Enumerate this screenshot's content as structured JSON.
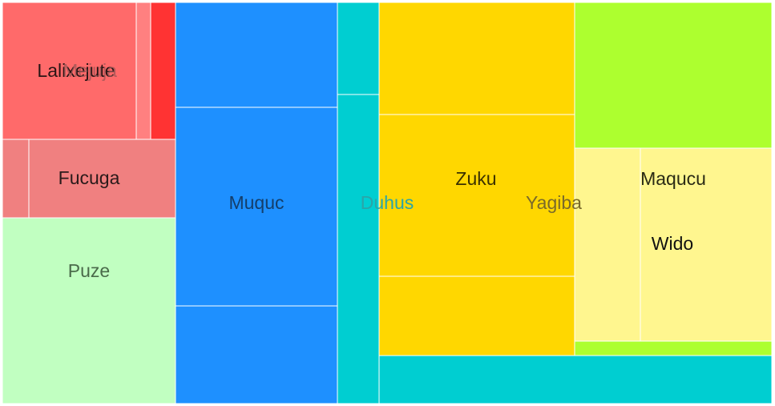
{
  "chart_data": {
    "type": "treemap",
    "nodes": [
      {
        "id": "Lalixejute",
        "color": "#ff6a6a",
        "label_color": "#2a1515",
        "label_opacity": 1
      },
      {
        "id": "Mejuja",
        "color": "#ff8080",
        "label_color": "#9a5555",
        "label_opacity": 0.75
      },
      {
        "id": "Mejuja-2",
        "name": "",
        "color": "#ff3333"
      },
      {
        "id": "Fucuga-a",
        "name": "",
        "color": "#f08080"
      },
      {
        "id": "Fucuga",
        "color": "#f08080",
        "label_color": "#2a1a1a",
        "label_opacity": 1
      },
      {
        "id": "Puze",
        "color": "#c1ffc1",
        "label_color": "#4a6a4a",
        "label_opacity": 1
      },
      {
        "id": "Muquc-top",
        "name": "",
        "color": "#1e90ff"
      },
      {
        "id": "Muquc",
        "color": "#1e90ff",
        "label_color": "#143e6a",
        "label_opacity": 1
      },
      {
        "id": "Muquc-bottom",
        "name": "",
        "color": "#1e90ff"
      },
      {
        "id": "Duhus-top",
        "name": "",
        "color": "#00ced1"
      },
      {
        "id": "Duhus",
        "color": "#00ced1",
        "label_color": "#2aa5a8",
        "label_opacity": 1
      },
      {
        "id": "Zuku-top",
        "name": "",
        "color": "#ffd700"
      },
      {
        "id": "Zuku",
        "color": "#ffd700",
        "label_color": "#3a3000",
        "label_opacity": 1
      },
      {
        "id": "Zuku-bottom",
        "name": "",
        "color": "#ffd700"
      },
      {
        "id": "Yagiba",
        "color": "#adff2f",
        "label_color": "#7a6a2a",
        "label_opacity": 1
      },
      {
        "id": "Maqucu",
        "color": "#fff68f",
        "label_color": "#2a2a15",
        "label_opacity": 1
      },
      {
        "id": "Wido",
        "color": "#fff68f",
        "label_color": "#111111",
        "label_opacity": 1
      },
      {
        "id": "Yagiba-strip",
        "name": "",
        "color": "#adff2f"
      },
      {
        "id": "Duhus-bottom",
        "name": "",
        "color": "#00ced1"
      }
    ]
  }
}
